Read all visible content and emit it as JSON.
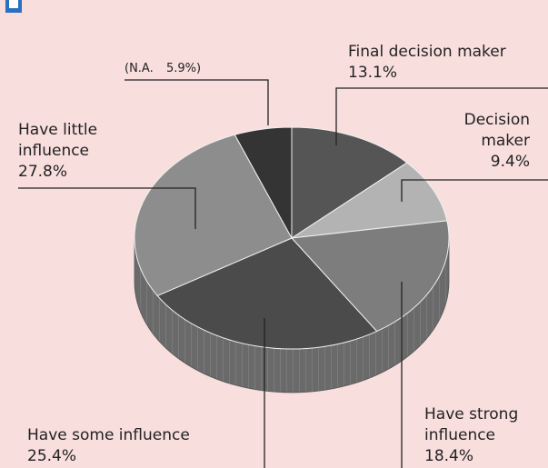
{
  "chart_data": {
    "type": "pie",
    "categories": [
      "Final decision maker",
      "Decision maker",
      "Have strong influence",
      "Have some influence",
      "Have little influence",
      "(N.A."
    ],
    "values": [
      13.1,
      9.4,
      18.4,
      25.4,
      27.8,
      5.9
    ],
    "value_labels": [
      "13.1%",
      "9.4%",
      "18.4%",
      "25.4%",
      "27.8%",
      "5.9%)"
    ],
    "colors": [
      "#555555",
      "#b3b3b3",
      "#7d7d7d",
      "#4b4b4b",
      "#8d8d8d",
      "#343434"
    ]
  }
}
